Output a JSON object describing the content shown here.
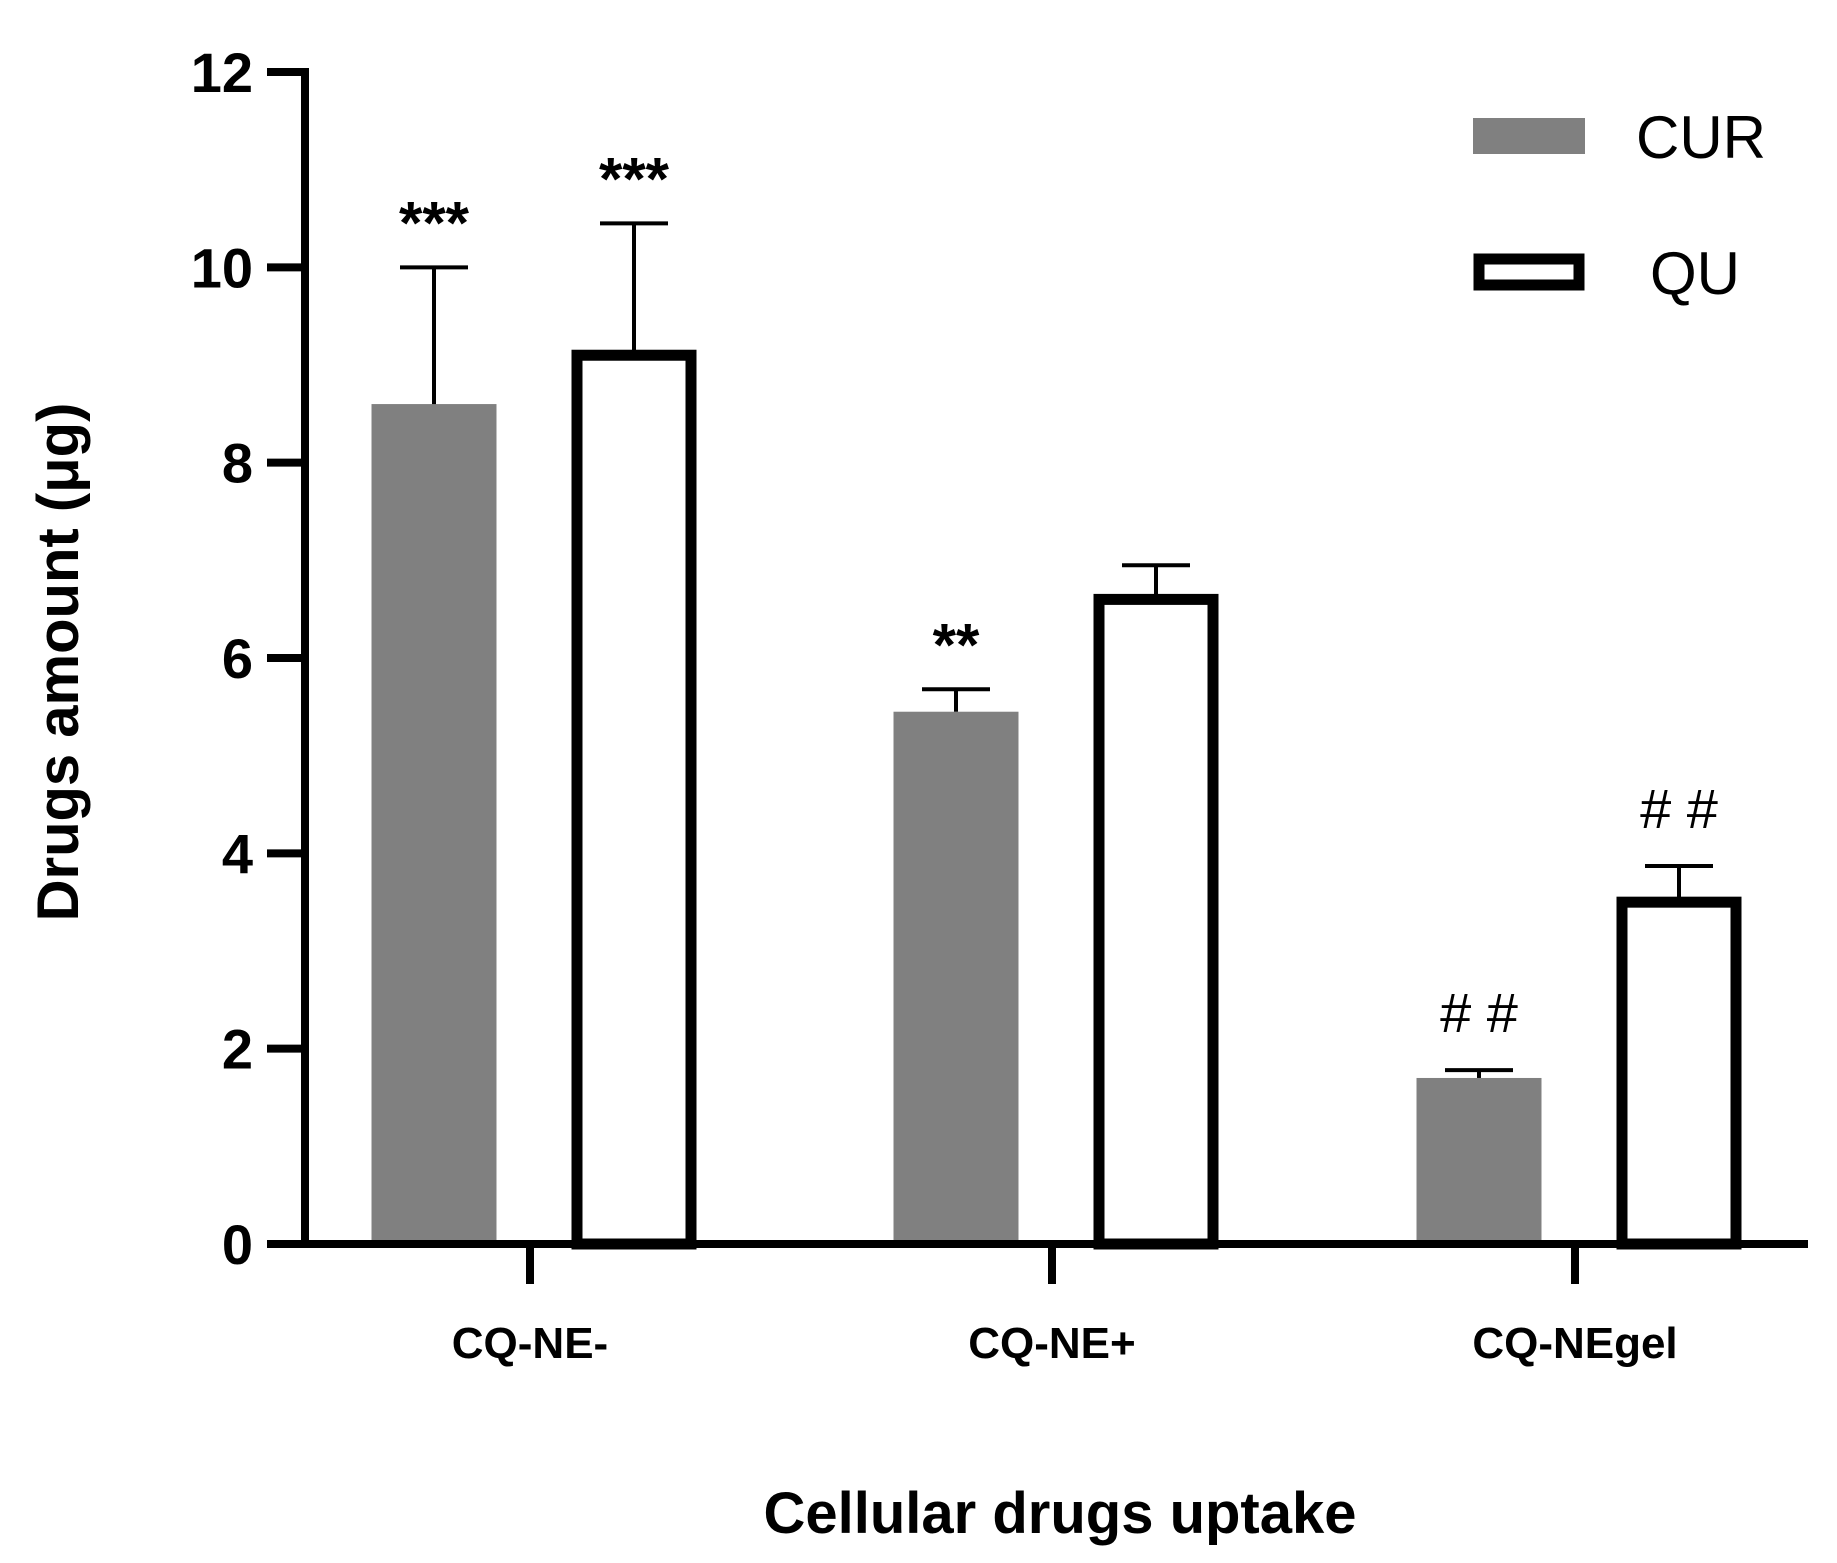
{
  "chart_data": {
    "type": "bar",
    "xlabel": "Cellular drugs uptake",
    "ylabel": "Drugs amount (μg)",
    "ylim": [
      0,
      12
    ],
    "yticks": [
      0,
      2,
      4,
      6,
      8,
      10,
      12
    ],
    "categories": [
      "CQ-NE-",
      "CQ-NE+",
      "CQ-NEgel"
    ],
    "series": [
      {
        "name": "CUR",
        "values": [
          8.6,
          5.45,
          1.7
        ],
        "errors": [
          1.4,
          0.23,
          0.08
        ],
        "fill": "#808080",
        "annotations": [
          "***",
          "**",
          "# #"
        ]
      },
      {
        "name": "QU",
        "values": [
          9.1,
          6.6,
          3.5
        ],
        "errors": [
          1.35,
          0.35,
          0.37
        ],
        "fill": "#ffffff",
        "annotations": [
          "***",
          "",
          "# #"
        ]
      }
    ],
    "legend": {
      "position": "top-right",
      "entries": [
        "CUR",
        "QU"
      ]
    },
    "grid": false
  }
}
